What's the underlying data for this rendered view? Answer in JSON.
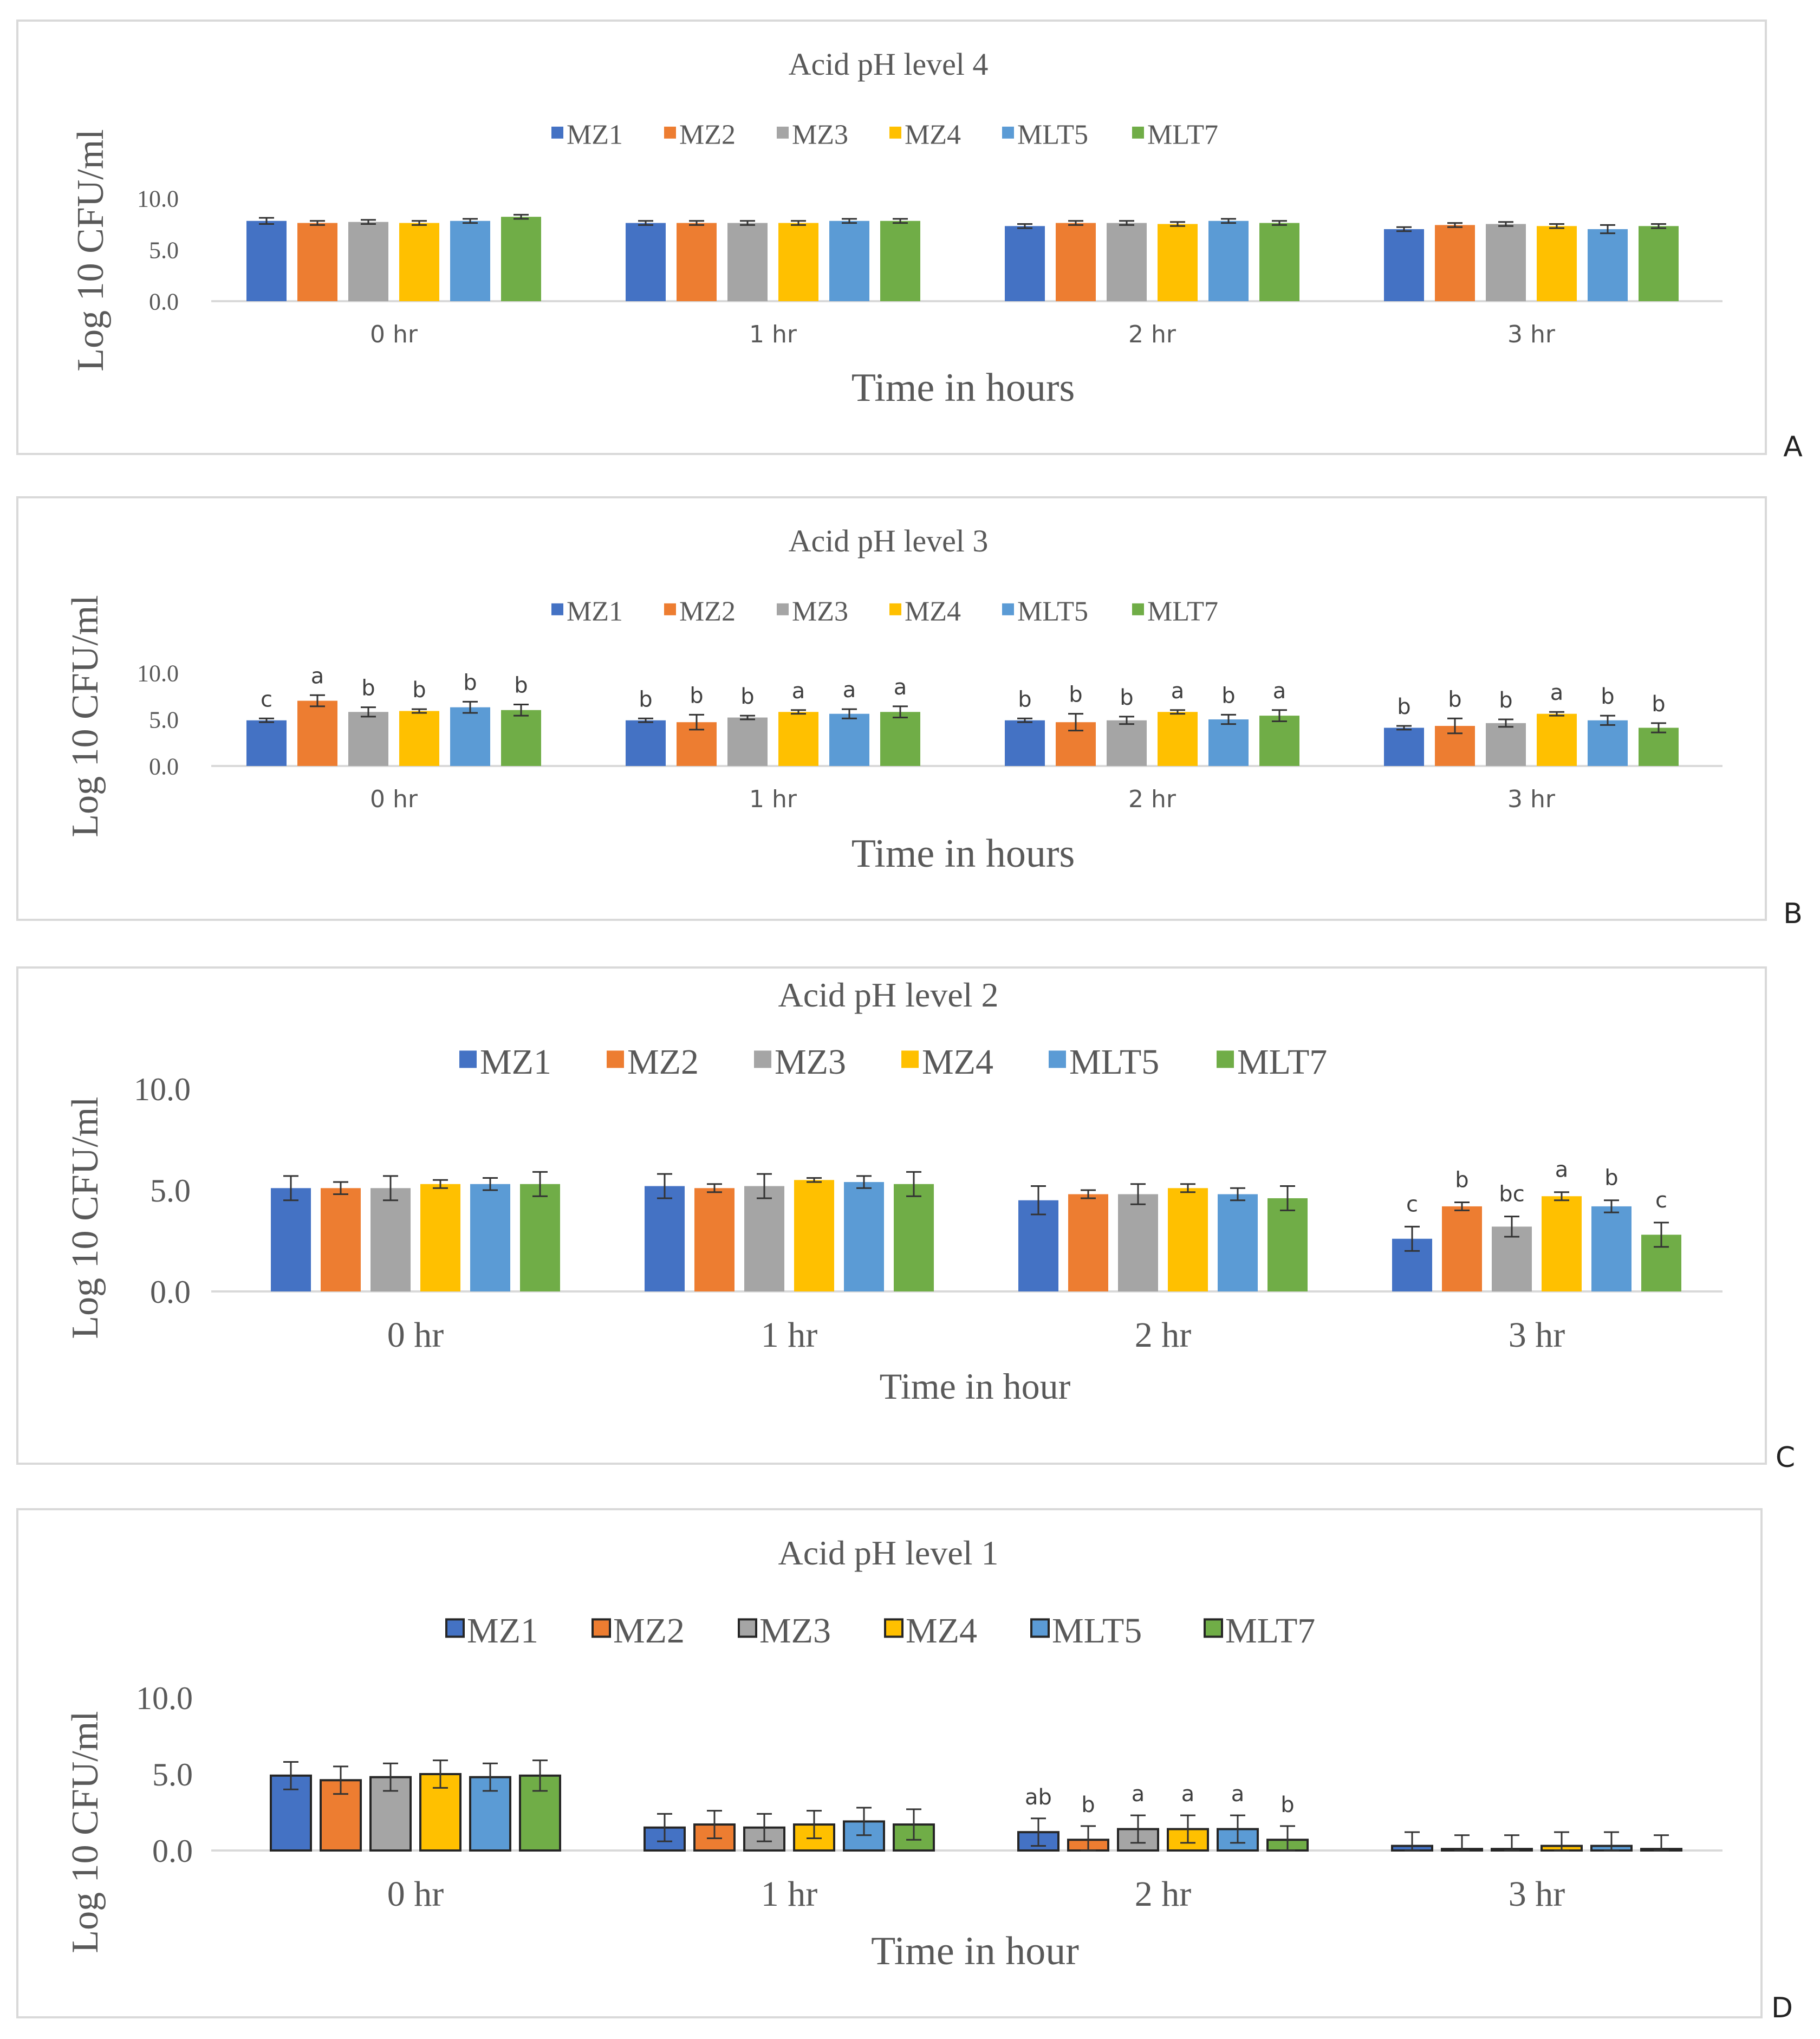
{
  "colors": {
    "MZ1": "#4472c4",
    "MZ2": "#ed7d31",
    "MZ3": "#a5a5a5",
    "MZ4": "#ffc000",
    "MLT5": "#5b9bd5",
    "MLT7": "#70ad47",
    "axis": "#d9d9d9",
    "frame": "#d9d9d9",
    "text": "#595959"
  },
  "chart_data": [
    {
      "panel": "A",
      "type": "bar",
      "title": "Acid pH level 4",
      "xlabel": "Time in hours",
      "ylabel": "Log 10 CFU/ml",
      "ylim": [
        0,
        10
      ],
      "y_ticks": [
        "0.0",
        "5.0",
        "10.0"
      ],
      "categories": [
        "0 hr",
        "1 hr",
        "2 hr",
        "3 hr"
      ],
      "legend": [
        "MZ1",
        "MZ2",
        "MZ3",
        "MZ4",
        "MLT5",
        "MLT7"
      ],
      "series": [
        {
          "name": "MZ1",
          "values": [
            7.8,
            7.6,
            7.3,
            7.0
          ],
          "errors": [
            0.3,
            0.2,
            0.2,
            0.2
          ]
        },
        {
          "name": "MZ2",
          "values": [
            7.6,
            7.6,
            7.6,
            7.4
          ],
          "errors": [
            0.2,
            0.2,
            0.2,
            0.2
          ]
        },
        {
          "name": "MZ3",
          "values": [
            7.7,
            7.6,
            7.6,
            7.5
          ],
          "errors": [
            0.2,
            0.2,
            0.2,
            0.2
          ]
        },
        {
          "name": "MZ4",
          "values": [
            7.6,
            7.6,
            7.5,
            7.3
          ],
          "errors": [
            0.2,
            0.2,
            0.2,
            0.2
          ]
        },
        {
          "name": "MLT5",
          "values": [
            7.8,
            7.8,
            7.8,
            7.0
          ],
          "errors": [
            0.2,
            0.2,
            0.2,
            0.4
          ]
        },
        {
          "name": "MLT7",
          "values": [
            8.2,
            7.8,
            7.6,
            7.3
          ],
          "errors": [
            0.2,
            0.2,
            0.2,
            0.2
          ]
        }
      ],
      "annotations": [],
      "panel_label": "A"
    },
    {
      "panel": "B",
      "type": "bar",
      "title": "Acid pH level 3",
      "xlabel": "Time in hours",
      "ylabel": "Log 10 CFU/ml",
      "ylim": [
        0,
        10
      ],
      "y_ticks": [
        "0.0",
        "5.0",
        "10.0"
      ],
      "categories": [
        "0 hr",
        "1 hr",
        "2 hr",
        "3 hr"
      ],
      "legend": [
        "MZ1",
        "MZ2",
        "MZ3",
        "MZ4",
        "MLT5",
        "MLT7"
      ],
      "series": [
        {
          "name": "MZ1",
          "values": [
            4.9,
            4.9,
            4.9,
            4.1
          ],
          "errors": [
            0.2,
            0.2,
            0.2,
            0.2
          ]
        },
        {
          "name": "MZ2",
          "values": [
            7.0,
            4.7,
            4.7,
            4.3
          ],
          "errors": [
            0.6,
            0.8,
            0.9,
            0.8
          ]
        },
        {
          "name": "MZ3",
          "values": [
            5.8,
            5.2,
            4.9,
            4.6
          ],
          "errors": [
            0.5,
            0.2,
            0.4,
            0.4
          ]
        },
        {
          "name": "MZ4",
          "values": [
            5.9,
            5.8,
            5.8,
            5.6
          ],
          "errors": [
            0.2,
            0.2,
            0.2,
            0.2
          ]
        },
        {
          "name": "MLT5",
          "values": [
            6.3,
            5.6,
            5.0,
            4.9
          ],
          "errors": [
            0.6,
            0.5,
            0.5,
            0.5
          ]
        },
        {
          "name": "MLT7",
          "values": [
            6.0,
            5.8,
            5.4,
            4.1
          ],
          "errors": [
            0.6,
            0.6,
            0.6,
            0.5
          ]
        }
      ],
      "annotations": [
        [
          "c",
          "a",
          "b",
          "b",
          "b",
          "b"
        ],
        [
          "b",
          "b",
          "b",
          "a",
          "a",
          "a"
        ],
        [
          "b",
          "b",
          "b",
          "a",
          "b",
          "a"
        ],
        [
          "b",
          "b",
          "b",
          "a",
          "b",
          "b"
        ]
      ],
      "panel_label": "B"
    },
    {
      "panel": "C",
      "type": "bar",
      "title": "Acid pH level 2",
      "xlabel": "Time in hour",
      "ylabel": "Log 10 CFU/ml",
      "ylim": [
        0,
        10
      ],
      "y_ticks": [
        "0.0",
        "5.0",
        "10.0"
      ],
      "categories": [
        "0 hr",
        "1 hr",
        "2 hr",
        "3 hr"
      ],
      "legend": [
        "MZ1",
        "MZ2",
        "MZ3",
        "MZ4",
        "MLT5",
        "MLT7"
      ],
      "series": [
        {
          "name": "MZ1",
          "values": [
            5.1,
            5.2,
            4.5,
            2.6
          ],
          "errors": [
            0.6,
            0.6,
            0.7,
            0.6
          ]
        },
        {
          "name": "MZ2",
          "values": [
            5.1,
            5.1,
            4.8,
            4.2
          ],
          "errors": [
            0.3,
            0.2,
            0.2,
            0.2
          ]
        },
        {
          "name": "MZ3",
          "values": [
            5.1,
            5.2,
            4.8,
            3.2
          ],
          "errors": [
            0.6,
            0.6,
            0.5,
            0.5
          ]
        },
        {
          "name": "MZ4",
          "values": [
            5.3,
            5.5,
            5.1,
            4.7
          ],
          "errors": [
            0.2,
            0.1,
            0.2,
            0.2
          ]
        },
        {
          "name": "MLT5",
          "values": [
            5.3,
            5.4,
            4.8,
            4.2
          ],
          "errors": [
            0.3,
            0.3,
            0.3,
            0.3
          ]
        },
        {
          "name": "MLT7",
          "values": [
            5.3,
            5.3,
            4.6,
            2.8
          ],
          "errors": [
            0.6,
            0.6,
            0.6,
            0.6
          ]
        }
      ],
      "annotations": [
        [
          "",
          "",
          "",
          "",
          "",
          ""
        ],
        [
          "",
          "",
          "",
          "",
          "",
          ""
        ],
        [
          "",
          "",
          "",
          "",
          "",
          ""
        ],
        [
          "c",
          "b",
          "bc",
          "a",
          "b",
          "c"
        ]
      ],
      "panel_label": "C"
    },
    {
      "panel": "D",
      "type": "bar",
      "title": "Acid pH level 1",
      "xlabel": "Time in hour",
      "ylabel": "Log 10 CFU/ml",
      "ylim": [
        0,
        10
      ],
      "y_ticks": [
        "0.0",
        "5.0",
        "10.0"
      ],
      "categories": [
        "0 hr",
        "1 hr",
        "2 hr",
        "3 hr"
      ],
      "legend": [
        "MZ1",
        "MZ2",
        "MZ3",
        "MZ4",
        "MLT5",
        "MLT7"
      ],
      "series": [
        {
          "name": "MZ1",
          "values": [
            4.9,
            1.5,
            1.2,
            0.3
          ],
          "errors": [
            0.9,
            0.9,
            0.9,
            0.9
          ]
        },
        {
          "name": "MZ2",
          "values": [
            4.6,
            1.7,
            0.7,
            0.1
          ],
          "errors": [
            0.9,
            0.9,
            0.9,
            0.9
          ]
        },
        {
          "name": "MZ3",
          "values": [
            4.8,
            1.5,
            1.4,
            0.1
          ],
          "errors": [
            0.9,
            0.9,
            0.9,
            0.9
          ]
        },
        {
          "name": "MZ4",
          "values": [
            5.0,
            1.7,
            1.4,
            0.3
          ],
          "errors": [
            0.9,
            0.9,
            0.9,
            0.9
          ]
        },
        {
          "name": "MLT5",
          "values": [
            4.8,
            1.9,
            1.4,
            0.3
          ],
          "errors": [
            0.9,
            0.9,
            0.9,
            0.9
          ]
        },
        {
          "name": "MLT7",
          "values": [
            4.9,
            1.7,
            0.7,
            0.1
          ],
          "errors": [
            1.0,
            1.0,
            0.9,
            0.9
          ]
        }
      ],
      "annotations": [
        [
          "",
          "",
          "",
          "",
          "",
          ""
        ],
        [
          "",
          "",
          "",
          "",
          "",
          ""
        ],
        [
          "ab",
          "b",
          "a",
          "a",
          "a",
          "b"
        ],
        [
          "",
          "",
          "",
          "",
          "",
          ""
        ]
      ],
      "panel_label": "D"
    }
  ]
}
